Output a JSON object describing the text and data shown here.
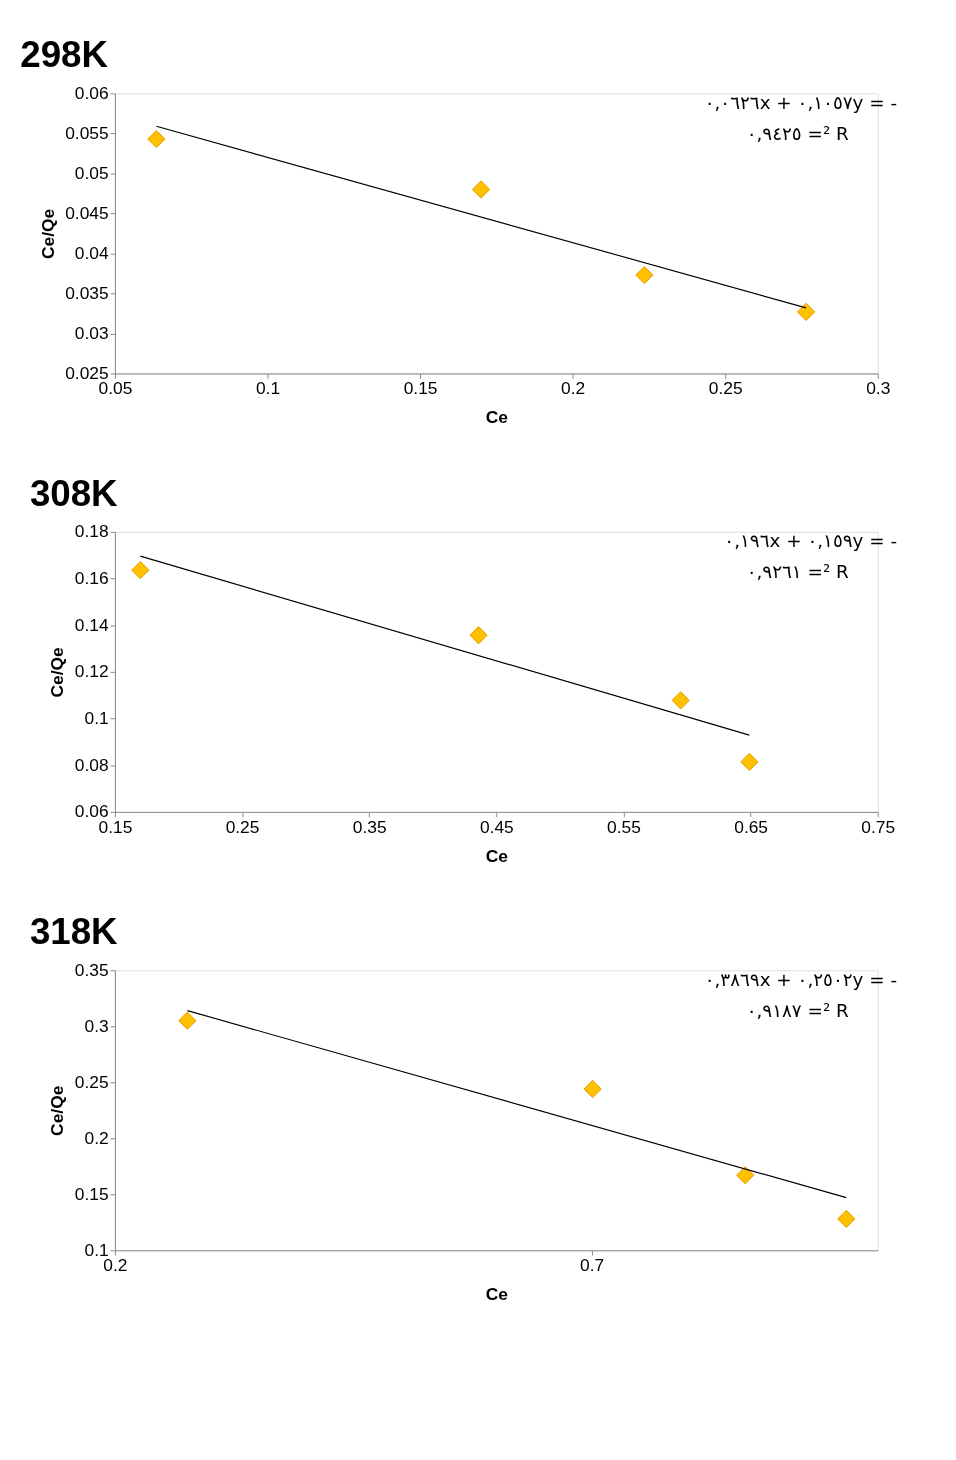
{
  "chart_data": [
    {
      "type": "scatter",
      "title": "298K",
      "xlabel": "Ce",
      "ylabel": "Ce/Qe",
      "xlim": [
        0.05,
        0.3
      ],
      "xticks": [
        0.05,
        0.1,
        0.15,
        0.2,
        0.25,
        0.3
      ],
      "ylim": [
        0.025,
        0.06
      ],
      "yticks": [
        0.025,
        0.03,
        0.035,
        0.04,
        0.045,
        0.05,
        0.055,
        0.06
      ],
      "annotations": [
        "٠,٠٦٢٦x + ٠,١٠٥٧y = -",
        "٠,٩٤٢٥ =² R"
      ],
      "series": [
        {
          "type": "scatter",
          "marker": "diamond",
          "color": "#ffc000",
          "x": [
            0.0636,
            0.17,
            0.2235,
            0.2765
          ],
          "values": [
            0.0543,
            0.048,
            0.0373,
            0.0327
          ]
        },
        {
          "type": "line",
          "color": "#000000",
          "x": [
            0.0636,
            0.2765
          ],
          "values": [
            0.0559,
            0.0332
          ]
        }
      ]
    },
    {
      "type": "scatter",
      "title": "308K",
      "xlabel": "Ce",
      "ylabel": "Ce/Qe",
      "xlim": [
        0.15,
        0.75
      ],
      "xticks": [
        0.15,
        0.25,
        0.35,
        0.45,
        0.55,
        0.65,
        0.75
      ],
      "ylim": [
        0.06,
        0.18
      ],
      "yticks": [
        0.06,
        0.08,
        0.1,
        0.12,
        0.14,
        0.16,
        0.18
      ],
      "annotations": [
        "٠,١٩٦x + ٠,١٥٩y = -",
        "٠,٩٢٦١ =² R"
      ],
      "series": [
        {
          "type": "scatter",
          "marker": "diamond",
          "color": "#ffc000",
          "x": [
            0.17,
            0.436,
            0.595,
            0.649
          ],
          "values": [
            0.1636,
            0.1357,
            0.1078,
            0.0814
          ]
        },
        {
          "type": "line",
          "color": "#000000",
          "x": [
            0.17,
            0.649
          ],
          "values": [
            0.1696,
            0.0929
          ]
        }
      ]
    },
    {
      "type": "scatter",
      "title": "318K",
      "xlabel": "Ce",
      "ylabel": "Ce/Qe",
      "xlim": [
        0.2,
        1.0
      ],
      "xticks": [
        0.2,
        0.7
      ],
      "ylim": [
        0.1,
        0.35
      ],
      "yticks": [
        0.1,
        0.15,
        0.2,
        0.25,
        0.3,
        0.35
      ],
      "annotations": [
        "٠,٣٨٦٩x + ٠,٢٥٠٢y = -",
        "٠,٩١٨٧ =² R"
      ],
      "series": [
        {
          "type": "scatter",
          "marker": "diamond",
          "color": "#ffc000",
          "x": [
            0.276,
            0.701,
            0.861,
            0.967
          ],
          "values": [
            0.305,
            0.244,
            0.167,
            0.128
          ]
        },
        {
          "type": "line",
          "color": "#000000",
          "x": [
            0.276,
            0.967
          ],
          "values": [
            0.314,
            0.147
          ]
        }
      ]
    }
  ]
}
